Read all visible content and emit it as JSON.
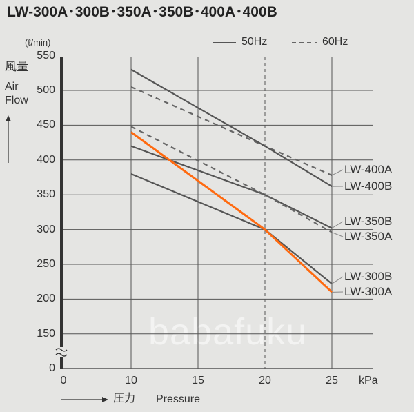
{
  "chart_data": {
    "type": "line",
    "title": "LW-300A･300B･350A･350B･400A･400B",
    "ylabel_unit": "(ℓ/min)",
    "ylabel_jp": "風量",
    "ylabel": "Air Flow",
    "xlabel_jp": "圧力",
    "xlabel": "Pressure",
    "xunit": "kPa",
    "xlim": [
      0,
      25
    ],
    "ylim": [
      0,
      550
    ],
    "axis_break": true,
    "xticks": [
      0,
      10,
      15,
      20,
      25
    ],
    "yticks": [
      0,
      150,
      200,
      250,
      300,
      350,
      400,
      450,
      500,
      550
    ],
    "grid": true,
    "legend": [
      {
        "name": "50Hz",
        "style": "solid"
      },
      {
        "name": "60Hz",
        "style": "dashed"
      }
    ],
    "legend_position": "top-right",
    "series": [
      {
        "name": "LW-400A",
        "style": "dashed",
        "color": "#666666",
        "x": [
          10,
          20,
          25
        ],
        "y": [
          505,
          420,
          378
        ]
      },
      {
        "name": "LW-400B",
        "style": "solid",
        "color": "#555555",
        "x": [
          10,
          20,
          25
        ],
        "y": [
          530,
          420,
          362
        ]
      },
      {
        "name": "LW-350B",
        "style": "solid",
        "color": "#555555",
        "x": [
          10,
          20,
          25
        ],
        "y": [
          420,
          350,
          302
        ]
      },
      {
        "name": "LW-350A",
        "style": "dashed",
        "color": "#666666",
        "x": [
          10,
          20,
          25
        ],
        "y": [
          448,
          350,
          296
        ]
      },
      {
        "name": "LW-300B",
        "style": "solid",
        "color": "#555555",
        "x": [
          10,
          20,
          25
        ],
        "y": [
          380,
          300,
          222
        ]
      },
      {
        "name": "LW-300A",
        "style": "solid",
        "color": "#ff6a10",
        "x": [
          10,
          20,
          25
        ],
        "y": [
          440,
          300,
          210
        ]
      }
    ]
  },
  "watermark": "babafuku"
}
